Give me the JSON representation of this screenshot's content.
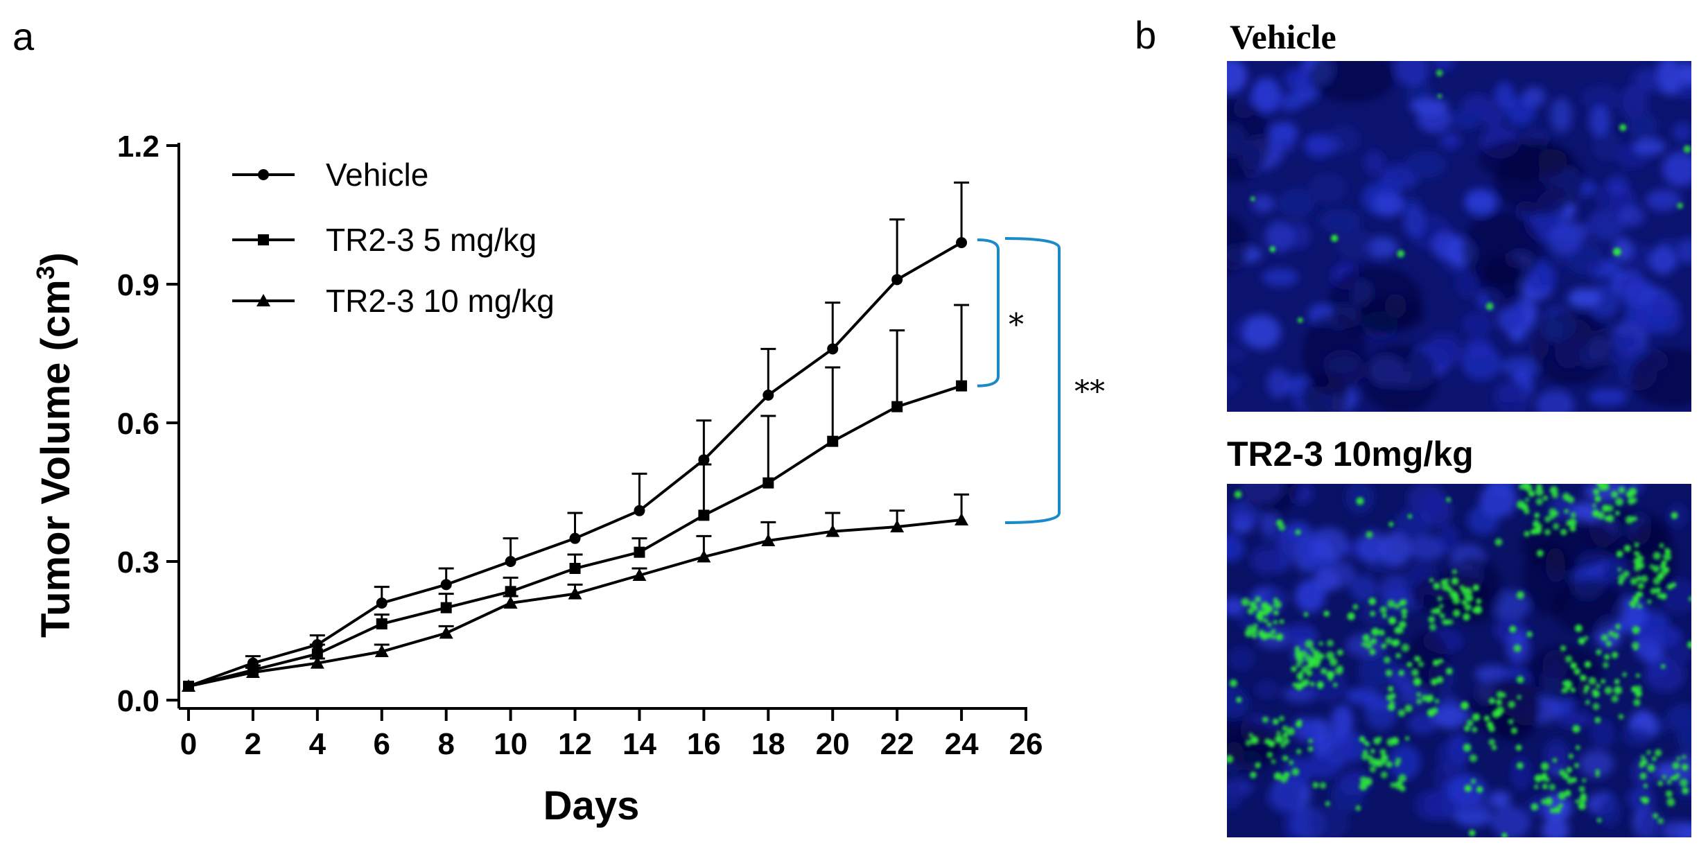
{
  "panels": {
    "a": {
      "letter": "a"
    },
    "b": {
      "letter": "b"
    }
  },
  "chart_data": {
    "type": "line",
    "title": "",
    "xlabel": "Days",
    "ylabel_main": "Tumor Volume (cm",
    "ylabel_sup": "3",
    "ylabel_end": ")",
    "xlim": [
      0,
      26
    ],
    "ylim": [
      0,
      1.2
    ],
    "xticks": [
      0,
      2,
      4,
      6,
      8,
      10,
      12,
      14,
      16,
      18,
      20,
      22,
      24,
      26
    ],
    "xtick_labels": [
      "0",
      "2",
      "4",
      "6",
      "8",
      "10",
      "12",
      "14",
      "16",
      "18",
      "20",
      "22",
      "24",
      "26"
    ],
    "yticks": [
      0,
      0.3,
      0.6,
      0.9,
      1.2
    ],
    "ytick_labels": [
      "0.0",
      "0.3",
      "0.6",
      "0.9",
      "1.2"
    ],
    "x": [
      0,
      2,
      4,
      6,
      8,
      10,
      12,
      14,
      16,
      18,
      20,
      22,
      24
    ],
    "series": [
      {
        "name": "Vehicle",
        "marker": "circle",
        "values": [
          0.03,
          0.08,
          0.12,
          0.21,
          0.25,
          0.3,
          0.35,
          0.41,
          0.52,
          0.66,
          0.76,
          0.91,
          0.99
        ],
        "errors": [
          0.0,
          0.015,
          0.02,
          0.035,
          0.035,
          0.05,
          0.055,
          0.08,
          0.085,
          0.1,
          0.1,
          0.13,
          0.13
        ]
      },
      {
        "name": "TR2-3 5 mg/kg",
        "marker": "square",
        "values": [
          0.03,
          0.065,
          0.1,
          0.165,
          0.2,
          0.235,
          0.285,
          0.32,
          0.4,
          0.47,
          0.56,
          0.635,
          0.68
        ],
        "errors": [
          0.0,
          0.01,
          0.02,
          0.02,
          0.03,
          0.03,
          0.03,
          0.03,
          0.11,
          0.145,
          0.16,
          0.165,
          0.175
        ]
      },
      {
        "name": "TR2-3 10 mg/kg",
        "marker": "triangle",
        "values": [
          0.03,
          0.06,
          0.08,
          0.105,
          0.145,
          0.21,
          0.23,
          0.27,
          0.31,
          0.345,
          0.365,
          0.375,
          0.39
        ],
        "errors": [
          0.0,
          0.01,
          0.01,
          0.015,
          0.015,
          0.015,
          0.02,
          0.015,
          0.045,
          0.04,
          0.04,
          0.035,
          0.055
        ]
      }
    ],
    "legend": [
      "Vehicle",
      "TR2-3 5 mg/kg",
      "TR2-3 10 mg/kg"
    ],
    "significance": [
      {
        "label": "*",
        "between": [
          "Vehicle",
          "TR2-3 5 mg/kg"
        ]
      },
      {
        "label": "**",
        "between": [
          "Vehicle",
          "TR2-3 10 mg/kg"
        ]
      }
    ],
    "bracket_color": "#1a8ac8"
  },
  "images": [
    {
      "title": "Vehicle",
      "green_density": "sparse"
    },
    {
      "title": "TR2-3 10mg/kg",
      "green_density": "dense"
    }
  ],
  "colors": {
    "nucleus": "#1c2ab8",
    "signal": "#27e02a"
  }
}
